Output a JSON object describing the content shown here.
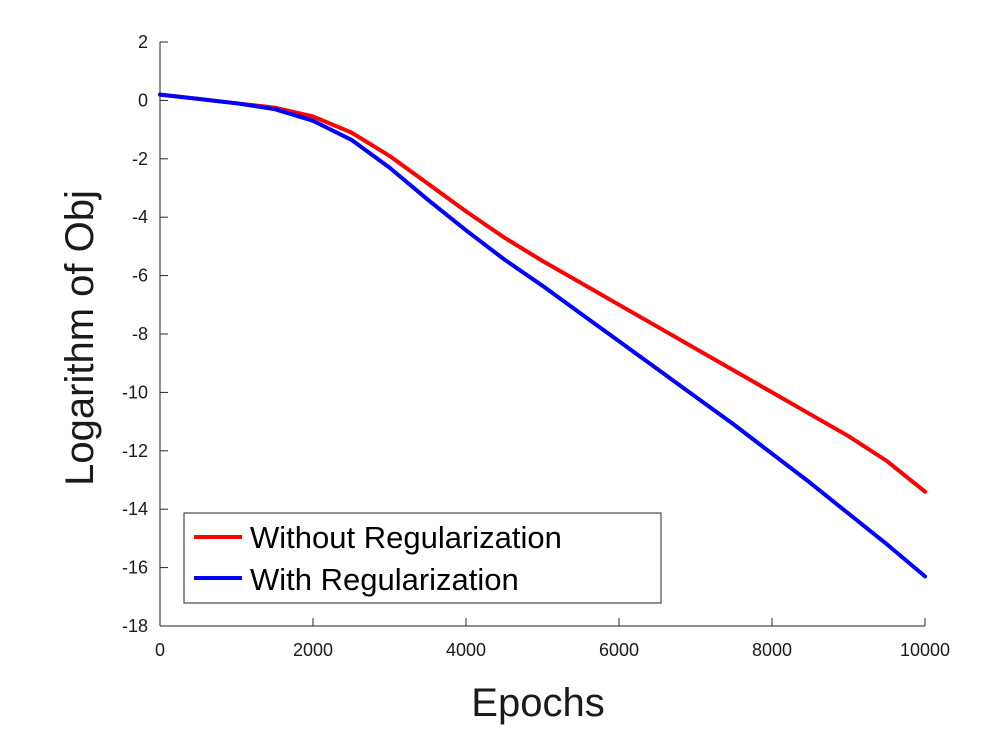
{
  "chart_data": {
    "type": "line",
    "title": "",
    "xlabel": "Epochs",
    "ylabel": "Logarithm of Obj",
    "xlim": [
      0,
      10000
    ],
    "ylim": [
      -18,
      2
    ],
    "xticks": [
      0,
      2000,
      4000,
      6000,
      8000,
      10000
    ],
    "yticks": [
      2,
      0,
      -2,
      -4,
      -6,
      -8,
      -10,
      -12,
      -14,
      -16,
      -18
    ],
    "x_tick_labels": [
      "0",
      "2000",
      "4000",
      "6000",
      "8000",
      "10000"
    ],
    "y_tick_labels": [
      "2",
      "0",
      "-2",
      "-4",
      "-6",
      "-8",
      "-10",
      "-12",
      "-14",
      "-16",
      "-18"
    ],
    "grid": false,
    "legend_position": "bottom-left",
    "series": [
      {
        "name": "Without Regularization",
        "color": "#ff0000",
        "x": [
          0,
          500,
          1000,
          1500,
          2000,
          2500,
          3000,
          3500,
          4000,
          4500,
          5000,
          5500,
          6000,
          6500,
          7000,
          7500,
          8000,
          8500,
          9000,
          9500,
          10000
        ],
        "y": [
          0.2,
          0.05,
          -0.1,
          -0.25,
          -0.55,
          -1.1,
          -1.9,
          -2.85,
          -3.8,
          -4.7,
          -5.5,
          -6.25,
          -7.0,
          -7.75,
          -8.5,
          -9.25,
          -10.0,
          -10.75,
          -11.5,
          -12.35,
          -13.4
        ]
      },
      {
        "name": "With Regularization",
        "color": "#0000ff",
        "x": [
          0,
          500,
          1000,
          1500,
          2000,
          2500,
          3000,
          3500,
          4000,
          4500,
          5000,
          5500,
          6000,
          6500,
          7000,
          7500,
          8000,
          8500,
          9000,
          9500,
          10000
        ],
        "y": [
          0.2,
          0.05,
          -0.1,
          -0.3,
          -0.7,
          -1.35,
          -2.3,
          -3.4,
          -4.45,
          -5.45,
          -6.35,
          -7.3,
          -8.25,
          -9.2,
          -10.15,
          -11.1,
          -12.1,
          -13.1,
          -14.15,
          -15.2,
          -16.3
        ]
      }
    ]
  }
}
